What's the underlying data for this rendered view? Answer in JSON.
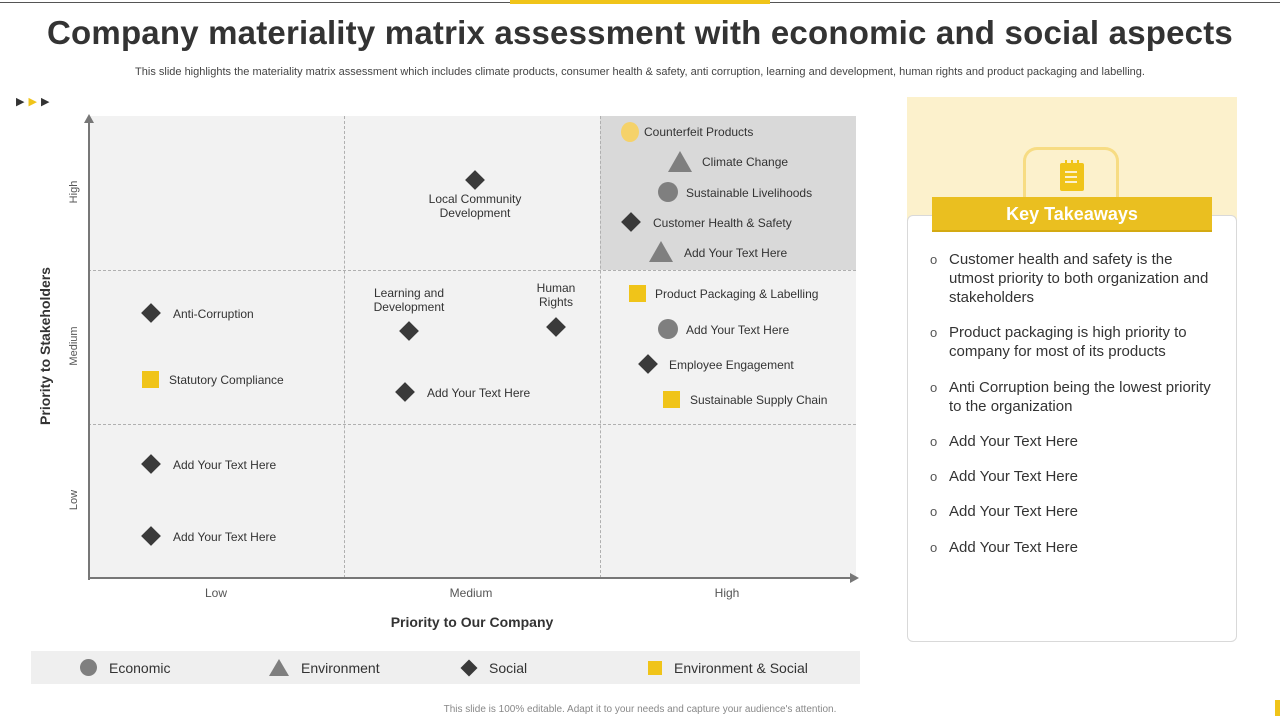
{
  "header": {
    "title": "Company materiality matrix assessment with economic and social aspects",
    "subtitle": "This slide highlights the materiality matrix assessment which includes climate products, consumer health & safety, anti corruption, learning and development, human rights and product packaging and labelling."
  },
  "matrix": {
    "y_title": "Priority to Stakeholders",
    "x_title": "Priority to Our Company",
    "y_ticks": [
      "High",
      "Medium",
      "Low"
    ],
    "x_ticks": [
      "Low",
      "Medium",
      "High"
    ],
    "points": [
      {
        "label": "Counterfeit Products",
        "shape": "circle-yellow",
        "x": "High",
        "y": "High"
      },
      {
        "label": "Climate Change",
        "shape": "triangle",
        "x": "High",
        "y": "High"
      },
      {
        "label": "Sustainable Livelihoods",
        "shape": "circle",
        "x": "High",
        "y": "High"
      },
      {
        "label": "Customer Health  & Safety",
        "shape": "diamond",
        "x": "High",
        "y": "High"
      },
      {
        "label": "Add Your Text Here",
        "shape": "triangle",
        "x": "High",
        "y": "High"
      },
      {
        "label": "Local Community Development",
        "shape": "diamond",
        "x": "Medium",
        "y": "High"
      },
      {
        "label": "Learning and Development",
        "shape": "diamond",
        "x": "Medium",
        "y": "Medium"
      },
      {
        "label": "Human Rights",
        "shape": "diamond",
        "x": "Medium",
        "y": "Medium"
      },
      {
        "label": "Add Your Text Here",
        "shape": "diamond",
        "x": "Medium",
        "y": "Medium"
      },
      {
        "label": "Anti-Corruption",
        "shape": "diamond",
        "x": "Low",
        "y": "Medium"
      },
      {
        "label": "Statutory  Compliance",
        "shape": "square",
        "x": "Low",
        "y": "Medium"
      },
      {
        "label": "Product Packaging & Labelling",
        "shape": "square",
        "x": "High",
        "y": "Medium"
      },
      {
        "label": "Add Your Text Here",
        "shape": "circle",
        "x": "High",
        "y": "Medium"
      },
      {
        "label": "Employee Engagement",
        "shape": "diamond",
        "x": "High",
        "y": "Medium"
      },
      {
        "label": "Sustainable Supply Chain",
        "shape": "square",
        "x": "High",
        "y": "Medium"
      },
      {
        "label": "Add Your Text Here",
        "shape": "diamond",
        "x": "Low",
        "y": "Low"
      },
      {
        "label": "Add Your Text Here",
        "shape": "diamond",
        "x": "Low",
        "y": "Low"
      }
    ]
  },
  "legend": {
    "items": [
      {
        "label": "Economic",
        "shape": "circle"
      },
      {
        "label": "Environment",
        "shape": "triangle"
      },
      {
        "label": "Social",
        "shape": "diamond"
      },
      {
        "label": "Environment  & Social",
        "shape": "square"
      }
    ]
  },
  "takeaways": {
    "title": "Key Takeaways",
    "bullet": "o",
    "items": [
      "Customer health and safety is the utmost priority to both organization and stakeholders",
      "Product packaging is high priority to company for most of its products",
      "Anti Corruption being the lowest priority to the organization",
      "Add Your Text Here",
      "Add Your Text Here",
      "Add Your Text Here",
      "Add Your Text Here"
    ]
  },
  "footer": {
    "note": "This slide is 100% editable. Adapt it to your needs and capture your audience's attention."
  },
  "colors": {
    "accent": "#f0c419",
    "dark": "#3a3a3a",
    "grey": "#7f7f7f"
  }
}
